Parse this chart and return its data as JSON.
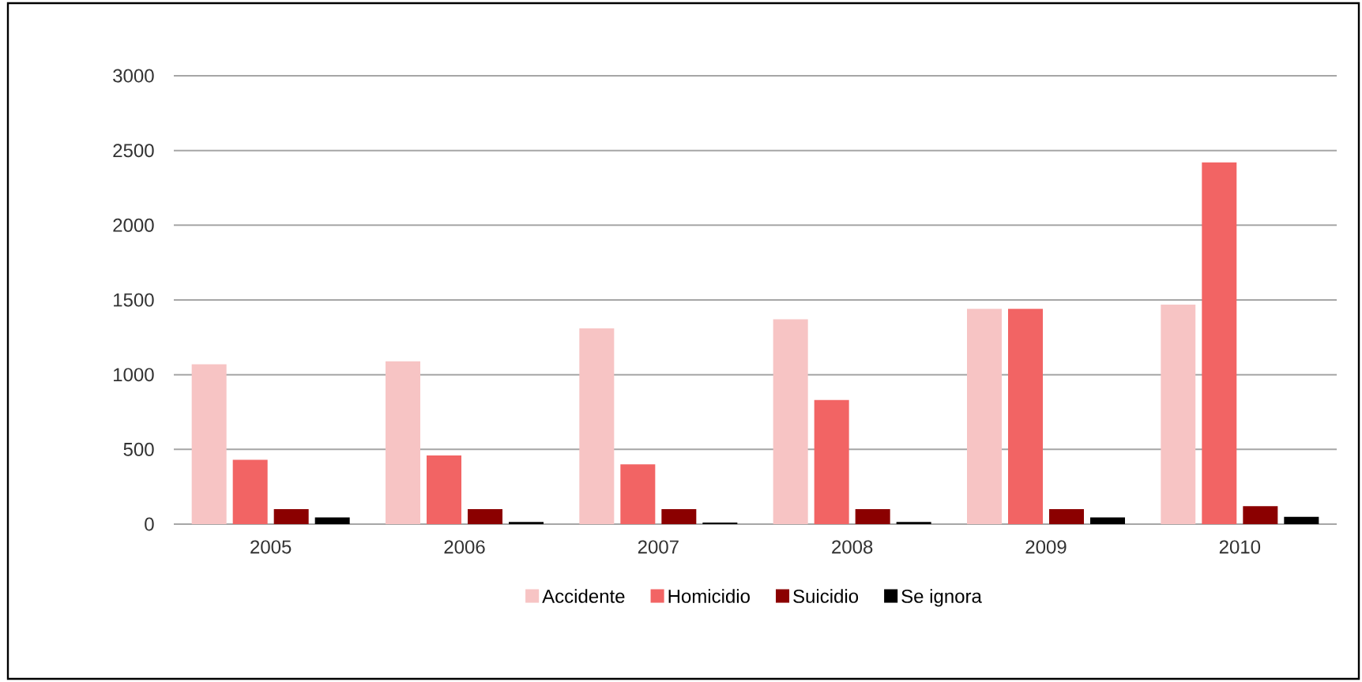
{
  "chart_data": {
    "type": "bar",
    "categories": [
      "2005",
      "2006",
      "2007",
      "2008",
      "2009",
      "2010"
    ],
    "series": [
      {
        "name": "Accidente",
        "color": "#f7c4c4",
        "values": [
          1070,
          1090,
          1310,
          1370,
          1440,
          1470
        ]
      },
      {
        "name": "Homicidio",
        "color": "#f26464",
        "values": [
          430,
          460,
          400,
          830,
          1440,
          2420
        ]
      },
      {
        "name": "Suicidio",
        "color": "#8b0000",
        "values": [
          100,
          100,
          100,
          100,
          100,
          120
        ]
      },
      {
        "name": "Se ignora",
        "color": "#000000",
        "values": [
          45,
          15,
          10,
          15,
          45,
          50
        ]
      }
    ],
    "ylim": [
      0,
      3000
    ],
    "yticks": [
      0,
      500,
      1000,
      1500,
      2000,
      2500,
      3000
    ],
    "grid": "y",
    "legend": "bottom"
  }
}
